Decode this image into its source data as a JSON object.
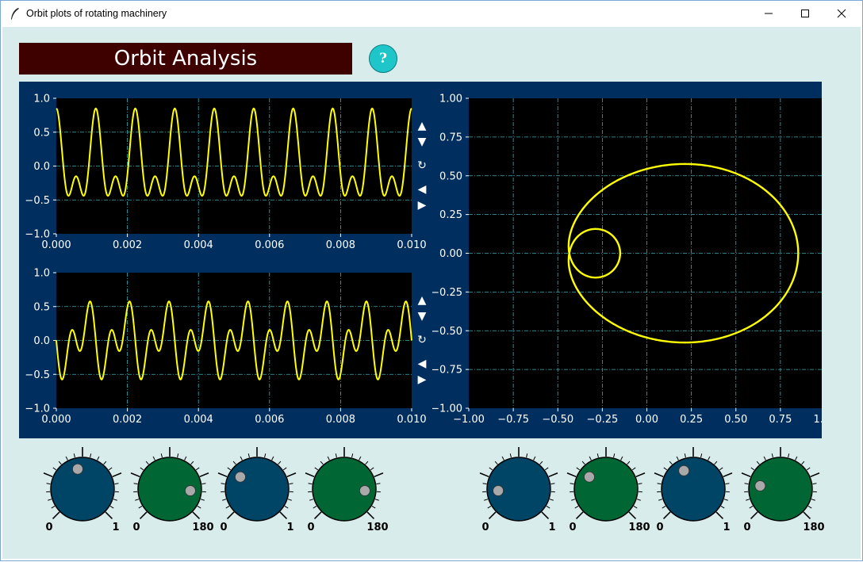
{
  "window": {
    "title": "Orbit plots of rotating machinery",
    "minimize_glyph": "—",
    "maximize_glyph": "☐",
    "close_glyph": "✕"
  },
  "header": {
    "banner": "Orbit Analysis",
    "help_label": "?"
  },
  "colors": {
    "client_bg": "#d9ecec",
    "banner_bg": "#3f0000",
    "panel_bg": "#002f5f",
    "plot_bg": "#000000",
    "trace": "#ffff00",
    "grid": "#2ab3c0",
    "knob_blue": "#004466",
    "knob_green": "#006633",
    "knob_dot": "#a9a9a9"
  },
  "plot_controls": {
    "up": "▲",
    "down": "▼",
    "reset": "↻",
    "left": "◀",
    "right": "▶"
  },
  "chart_data": [
    {
      "type": "line",
      "name_key": "x-signal",
      "xlim": [
        0,
        0.01
      ],
      "ylim": [
        -1,
        1
      ],
      "xticks": [
        "0.000",
        "0.002",
        "0.004",
        "0.006",
        "0.008",
        "0.010"
      ],
      "yticks": [
        "−1.0",
        "−0.5",
        "0.0",
        "0.5",
        "1.0"
      ],
      "grid": true,
      "signal": {
        "fundamental_hz": 900,
        "components": [
          [
            1,
            0.5,
            0.0
          ],
          [
            2,
            0.35,
            0.0
          ],
          [
            1,
            0.0,
            0.0
          ]
        ]
      }
    },
    {
      "type": "line",
      "name_key": "y-signal",
      "xlim": [
        0,
        0.01
      ],
      "ylim": [
        -1,
        1
      ],
      "xticks": [
        "0.000",
        "0.002",
        "0.004",
        "0.006",
        "0.008",
        "0.010"
      ],
      "yticks": [
        "−1.0",
        "−0.5",
        "0.0",
        "0.5",
        "1.0"
      ],
      "grid": true,
      "signal": {
        "fundamental_hz": 900,
        "components": [
          [
            1,
            0.3,
            90
          ],
          [
            2,
            0.35,
            90
          ]
        ]
      }
    },
    {
      "type": "line",
      "name_key": "orbit",
      "xlim": [
        -1,
        1
      ],
      "ylim": [
        -1,
        1
      ],
      "xticks": [
        "−1.00",
        "−0.75",
        "−0.50",
        "−0.25",
        "0.00",
        "0.25",
        "0.50",
        "0.75",
        "1.00"
      ],
      "yticks": [
        "−1.00",
        "−0.75",
        "−0.50",
        "−0.25",
        "0.00",
        "0.25",
        "0.50",
        "0.75",
        "1.00"
      ],
      "grid": true,
      "orbit": {
        "components": [
          [
            1,
            0.5,
            0.0,
            0.3,
            90
          ],
          [
            2,
            0.35,
            0.0,
            0.35,
            90
          ]
        ]
      }
    }
  ],
  "knobs": [
    {
      "color": "blue",
      "min": "0",
      "max": "1",
      "value": 0.45
    },
    {
      "color": "green",
      "min": "0",
      "max": "180",
      "value": 0.85
    },
    {
      "color": "blue",
      "min": "0",
      "max": "1",
      "value": 0.3
    },
    {
      "color": "green",
      "min": "0",
      "max": "180",
      "value": 0.85
    },
    {
      "color": "blue",
      "min": "0",
      "max": "1",
      "value": 0.15
    },
    {
      "color": "green",
      "min": "0",
      "max": "180",
      "value": 0.3
    },
    {
      "color": "blue",
      "min": "0",
      "max": "1",
      "value": 0.4
    },
    {
      "color": "green",
      "min": "0",
      "max": "180",
      "value": 0.2
    }
  ]
}
